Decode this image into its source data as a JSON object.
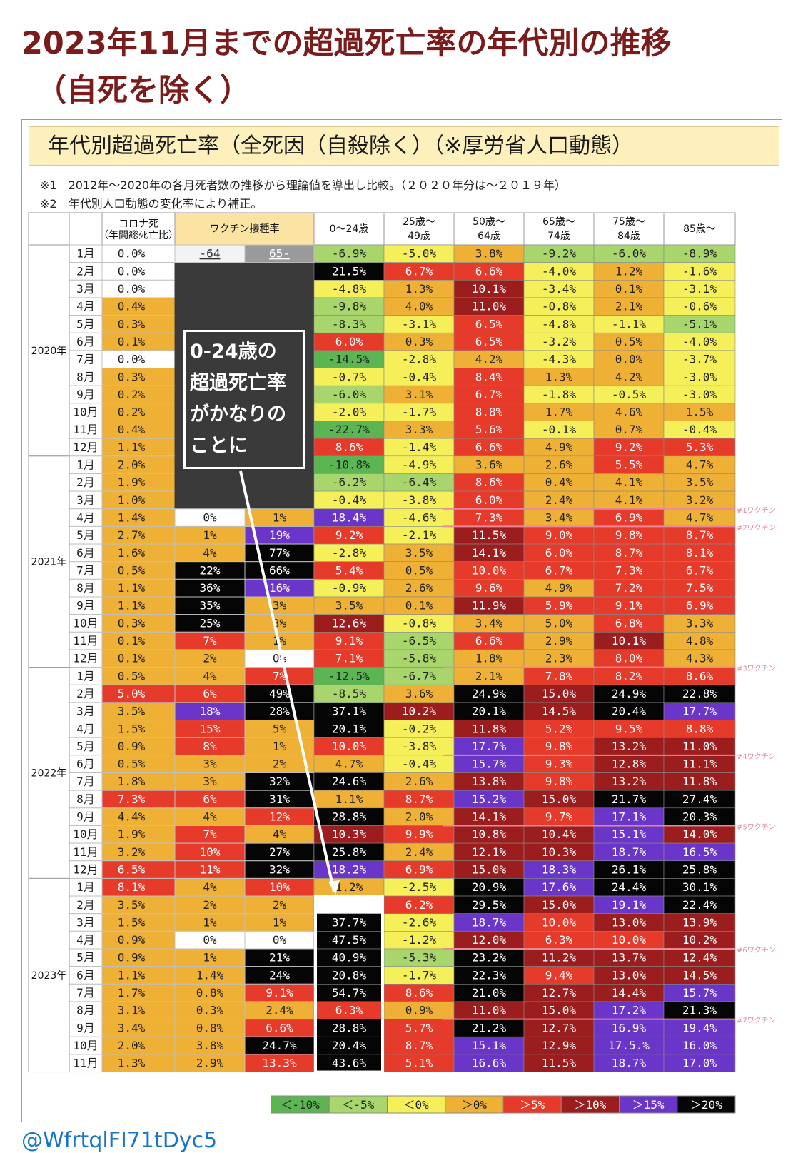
{
  "page": {
    "title_line1": "2023年11月までの超過死亡率の年代別の推移",
    "title_line2": "（自死を除く）",
    "heading": "年代別超過死亡率（全死因（自殺除く）（※厚労省人口動態）",
    "note1": "※1　2012年～2020年の各月死者数の推移から理論値を導出し比較。（２０２０年分は～２０１９年）",
    "note2": "※2　年代別人口動態の変化率により補正。",
    "annotation_lines": [
      "0-24歳の",
      "超過死亡率",
      "がかなりの",
      "ことに"
    ],
    "credit": "@WfrtqlFI71tDyc5"
  },
  "chart_data": {
    "type": "table",
    "columns": {
      "corona": "コロナ死",
      "corona_sub": "（年間総死亡比）",
      "vaccine": "ワクチン接種率",
      "vaccine_sub_under64": "-64",
      "vaccine_sub_65plus": "65-",
      "ages": [
        "0～24歳",
        "25歳～\n49歳",
        "50歳～\n64歳",
        "65歳～\n74歳",
        "75歳～\n84歳",
        "85歳～"
      ]
    },
    "years": [
      {
        "label": "2020年",
        "start": 0,
        "count": 12
      },
      {
        "label": "2021年",
        "start": 12,
        "count": 12
      },
      {
        "label": "2022年",
        "start": 24,
        "count": 12
      },
      {
        "label": "2023年",
        "start": 36,
        "count": 11
      }
    ],
    "rows": [
      [
        "1月",
        "0.0%",
        "",
        "",
        "-6.9%",
        "-5.0%",
        "3.8%",
        "-9.2%",
        "-6.0%",
        "-8.9%"
      ],
      [
        "2月",
        "0.0%",
        "",
        "",
        "21.5%",
        "6.7%",
        "6.6%",
        "-4.0%",
        "1.2%",
        "-1.6%"
      ],
      [
        "3月",
        "0.0%",
        "",
        "",
        "-4.8%",
        "1.3%",
        "10.1%",
        "-3.4%",
        "0.1%",
        "-3.1%"
      ],
      [
        "4月",
        "0.4%",
        "",
        "",
        "-9.8%",
        "4.0%",
        "11.0%",
        "-0.8%",
        "2.1%",
        "-0.6%"
      ],
      [
        "5月",
        "0.3%",
        "",
        "",
        "-8.3%",
        "-3.1%",
        "6.5%",
        "-4.8%",
        "-1.1%",
        "-5.1%"
      ],
      [
        "6月",
        "0.1%",
        "",
        "",
        "6.0%",
        "0.3%",
        "6.5%",
        "-3.2%",
        "0.5%",
        "-4.0%"
      ],
      [
        "7月",
        "0.0%",
        "",
        "",
        "-14.5%",
        "-2.8%",
        "4.2%",
        "-4.3%",
        "0.0%",
        "-3.7%"
      ],
      [
        "8月",
        "0.3%",
        "",
        "",
        "-0.7%",
        "-0.4%",
        "8.4%",
        "1.3%",
        "4.2%",
        "-3.0%"
      ],
      [
        "9月",
        "0.2%",
        "",
        "",
        "-6.0%",
        "3.1%",
        "6.7%",
        "-1.8%",
        "-0.5%",
        "-3.0%"
      ],
      [
        "10月",
        "0.2%",
        "",
        "",
        "-2.0%",
        "-1.7%",
        "8.8%",
        "1.7%",
        "4.6%",
        "1.5%"
      ],
      [
        "11月",
        "0.4%",
        "",
        "",
        "-22.7%",
        "3.3%",
        "5.6%",
        "-0.1%",
        "0.7%",
        "-0.4%"
      ],
      [
        "12月",
        "1.1%",
        "",
        "",
        "8.6%",
        "-1.4%",
        "6.6%",
        "4.9%",
        "9.2%",
        "5.3%"
      ],
      [
        "1月",
        "2.0%",
        "",
        "",
        "-10.8%",
        "-4.9%",
        "3.6%",
        "2.6%",
        "5.5%",
        "4.7%"
      ],
      [
        "2月",
        "1.9%",
        "",
        "",
        "-6.2%",
        "-6.4%",
        "8.6%",
        "0.4%",
        "4.1%",
        "3.5%"
      ],
      [
        "3月",
        "1.0%",
        "",
        "",
        "-0.4%",
        "-3.8%",
        "6.0%",
        "2.4%",
        "4.1%",
        "3.2%"
      ],
      [
        "4月",
        "1.4%",
        "0%",
        "1%",
        "18.4%",
        "-4.6%",
        "7.3%",
        "3.4%",
        "6.9%",
        "4.7%"
      ],
      [
        "5月",
        "2.7%",
        "1%",
        "19%",
        "9.2%",
        "-2.1%",
        "11.5%",
        "9.0%",
        "9.8%",
        "8.7%"
      ],
      [
        "6月",
        "1.6%",
        "4%",
        "77%",
        "-2.8%",
        "3.5%",
        "14.1%",
        "6.0%",
        "8.7%",
        "8.1%"
      ],
      [
        "7月",
        "0.5%",
        "22%",
        "66%",
        "5.4%",
        "0.5%",
        "10.0%",
        "6.7%",
        "7.3%",
        "6.7%"
      ],
      [
        "8月",
        "1.1%",
        "36%",
        "16%",
        "-0.9%",
        "2.6%",
        "9.6%",
        "4.9%",
        "7.2%",
        "7.5%"
      ],
      [
        "9月",
        "1.1%",
        "35%",
        "3%",
        "3.5%",
        "0.1%",
        "11.9%",
        "5.9%",
        "9.1%",
        "6.9%"
      ],
      [
        "10月",
        "0.3%",
        "25%",
        "3%",
        "12.6%",
        "-0.8%",
        "3.4%",
        "5.0%",
        "6.8%",
        "3.3%"
      ],
      [
        "11月",
        "0.1%",
        "7%",
        "1%",
        "9.1%",
        "-6.5%",
        "6.6%",
        "2.9%",
        "10.1%",
        "4.8%"
      ],
      [
        "12月",
        "0.1%",
        "2%",
        "0%",
        "7.1%",
        "-5.8%",
        "1.8%",
        "2.3%",
        "8.0%",
        "4.3%"
      ],
      [
        "1月",
        "0.5%",
        "4%",
        "7%",
        "-12.5%",
        "-6.7%",
        "2.1%",
        "7.8%",
        "8.2%",
        "8.6%"
      ],
      [
        "2月",
        "5.0%",
        "6%",
        "49%",
        "-8.5%",
        "3.6%",
        "24.9%",
        "15.0%",
        "24.9%",
        "22.8%"
      ],
      [
        "3月",
        "3.5%",
        "18%",
        "28%",
        "37.1%",
        "10.2%",
        "20.1%",
        "14.5%",
        "20.4%",
        "17.7%"
      ],
      [
        "4月",
        "1.5%",
        "15%",
        "5%",
        "20.1%",
        "-0.2%",
        "11.8%",
        "5.2%",
        "9.5%",
        "8.8%"
      ],
      [
        "5月",
        "0.9%",
        "8%",
        "1%",
        "10.0%",
        "-3.8%",
        "17.7%",
        "9.8%",
        "13.2%",
        "11.0%"
      ],
      [
        "6月",
        "0.5%",
        "3%",
        "2%",
        "4.7%",
        "-0.4%",
        "15.7%",
        "9.3%",
        "12.8%",
        "11.1%"
      ],
      [
        "7月",
        "1.8%",
        "3%",
        "32%",
        "24.6%",
        "2.6%",
        "13.8%",
        "9.8%",
        "13.2%",
        "11.8%"
      ],
      [
        "8月",
        "7.3%",
        "6%",
        "31%",
        "1.1%",
        "8.7%",
        "15.2%",
        "15.0%",
        "21.7%",
        "27.4%"
      ],
      [
        "9月",
        "4.4%",
        "4%",
        "12%",
        "28.8%",
        "2.0%",
        "14.1%",
        "9.7%",
        "17.1%",
        "20.3%"
      ],
      [
        "10月",
        "1.9%",
        "7%",
        "4%",
        "10.3%",
        "9.9%",
        "10.8%",
        "10.4%",
        "15.1%",
        "14.0%"
      ],
      [
        "11月",
        "3.2%",
        "10%",
        "27%",
        "25.8%",
        "2.4%",
        "12.1%",
        "10.3%",
        "18.7%",
        "16.5%"
      ],
      [
        "12月",
        "6.5%",
        "11%",
        "32%",
        "18.2%",
        "6.9%",
        "15.0%",
        "18.3%",
        "26.1%",
        "25.8%"
      ],
      [
        "1月",
        "8.1%",
        "4%",
        "10%",
        "1.2%",
        "-2.5%",
        "20.9%",
        "17.6%",
        "24.4%",
        "30.1%"
      ],
      [
        "2月",
        "3.5%",
        "2%",
        "2%",
        "",
        "6.2%",
        "29.5%",
        "15.0%",
        "19.1%",
        "22.4%"
      ],
      [
        "3月",
        "1.5%",
        "1%",
        "1%",
        "37.7%",
        "-2.6%",
        "18.7%",
        "10.0%",
        "13.0%",
        "13.9%"
      ],
      [
        "4月",
        "0.9%",
        "0%",
        "0%",
        "47.5%",
        "-1.2%",
        "12.0%",
        "6.3%",
        "10.0%",
        "10.2%"
      ],
      [
        "5月",
        "0.9%",
        "1%",
        "21%",
        "40.9%",
        "-5.3%",
        "23.2%",
        "11.2%",
        "13.7%",
        "12.4%"
      ],
      [
        "6月",
        "1.1%",
        "1.4%",
        "24%",
        "20.8%",
        "-1.7%",
        "22.3%",
        "9.4%",
        "13.0%",
        "14.5%"
      ],
      [
        "7月",
        "1.7%",
        "0.8%",
        "9.1%",
        "54.7%",
        "8.6%",
        "21.0%",
        "12.7%",
        "14.4%",
        "15.7%"
      ],
      [
        "8月",
        "3.1%",
        "0.3%",
        "2.4%",
        "6.3%",
        "0.9%",
        "11.0%",
        "15.0%",
        "17.2%",
        "21.3%"
      ],
      [
        "9月",
        "3.4%",
        "0.8%",
        "6.6%",
        "28.8%",
        "5.7%",
        "21.2%",
        "12.7%",
        "16.9%",
        "19.4%"
      ],
      [
        "10月",
        "2.0%",
        "3.8%",
        "24.7%",
        "20.4%",
        "8.7%",
        "15.1%",
        "12.9%",
        "17.5.%",
        "16.0%"
      ],
      [
        "11月",
        "1.3%",
        "2.9%",
        "13.3%",
        "43.6%",
        "5.1%",
        "16.6%",
        "11.5%",
        "18.7%",
        "17.0%"
      ]
    ],
    "legend": [
      {
        "label": "＜-10%",
        "color": "#5ab552"
      },
      {
        "label": "＜-5%",
        "color": "#a8d66c"
      },
      {
        "label": "＜0%",
        "color": "#f5f05a"
      },
      {
        "label": "＞0%",
        "color": "#efb135"
      },
      {
        "label": "＞5%",
        "color": "#e63a2a"
      },
      {
        "label": "＞10%",
        "color": "#9c1d1d"
      },
      {
        "label": "＞15%",
        "color": "#6a36c9"
      },
      {
        "label": "＞20%",
        "color": "#050505"
      }
    ],
    "dose_markers": [
      {
        "label": "#1ワクチン",
        "row": 15
      },
      {
        "label": "#2ワクチン",
        "row": 16
      },
      {
        "label": "#3ワクチン",
        "row": 24
      },
      {
        "label": "#4ワクチン",
        "row": 29
      },
      {
        "label": "#5ワクチン",
        "row": 33
      },
      {
        "label": "#6ワクチン",
        "row": 40
      },
      {
        "label": "#7ワクチン",
        "row": 44
      }
    ],
    "colors": {
      "corona_ok": "#ffffff",
      "vaccine_blank": "#3a3a3a",
      "vaccine_zero": "#ffffff",
      "marker_line": "#e88a9a",
      "annotation_arrow": "#ffffff",
      "title": "#7a1c1c"
    }
  }
}
